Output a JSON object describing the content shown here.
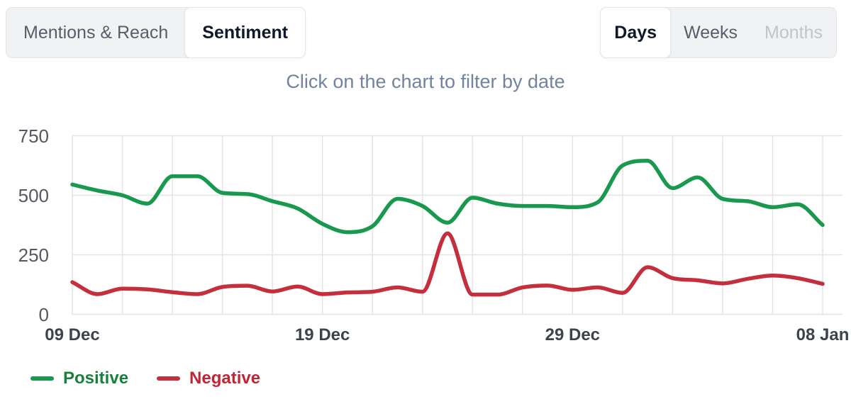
{
  "header": {
    "view_tabs": [
      {
        "label": "Mentions & Reach",
        "active": false
      },
      {
        "label": "Sentiment",
        "active": true
      }
    ],
    "period_tabs": [
      {
        "label": "Days",
        "active": true,
        "disabled": false
      },
      {
        "label": "Weeks",
        "active": false,
        "disabled": false
      },
      {
        "label": "Months",
        "active": false,
        "disabled": true
      }
    ]
  },
  "subtitle": "Click on the chart to filter by date",
  "chart_data": {
    "type": "line",
    "title": "",
    "xlabel": "",
    "ylabel": "",
    "grid": true,
    "legend_position": "bottom-left",
    "ylim": [
      0,
      750
    ],
    "y_ticks": [
      0,
      250,
      500,
      750
    ],
    "x_grid_every": 2,
    "x": [
      "09 Dec",
      "10 Dec",
      "11 Dec",
      "12 Dec",
      "13 Dec",
      "14 Dec",
      "15 Dec",
      "16 Dec",
      "17 Dec",
      "18 Dec",
      "19 Dec",
      "20 Dec",
      "21 Dec",
      "22 Dec",
      "23 Dec",
      "24 Dec",
      "25 Dec",
      "26 Dec",
      "27 Dec",
      "28 Dec",
      "29 Dec",
      "30 Dec",
      "31 Dec",
      "01 Jan",
      "02 Jan",
      "03 Jan",
      "04 Jan",
      "05 Jan",
      "06 Jan",
      "07 Jan",
      "08 Jan"
    ],
    "x_ticks": [
      {
        "index": 0,
        "label": "09 Dec"
      },
      {
        "index": 10,
        "label": "19 Dec"
      },
      {
        "index": 20,
        "label": "29 Dec"
      },
      {
        "index": 30,
        "label": "08 Jan"
      }
    ],
    "series": [
      {
        "name": "Positive",
        "color": "#18994e",
        "legend_text_color": "#17813c",
        "values": [
          545,
          520,
          500,
          465,
          580,
          580,
          510,
          505,
          475,
          445,
          380,
          345,
          370,
          485,
          455,
          385,
          490,
          465,
          455,
          455,
          450,
          470,
          625,
          645,
          530,
          575,
          485,
          475,
          450,
          462,
          375
        ]
      },
      {
        "name": "Negative",
        "color": "#c52f3d",
        "legend_text_color": "#c22434",
        "values": [
          135,
          85,
          108,
          105,
          93,
          85,
          115,
          120,
          96,
          117,
          85,
          92,
          95,
          113,
          95,
          340,
          83,
          83,
          113,
          121,
          103,
          113,
          90,
          198,
          152,
          143,
          130,
          149,
          163,
          152,
          128
        ]
      }
    ],
    "grid_color": "#e4e4e4"
  }
}
